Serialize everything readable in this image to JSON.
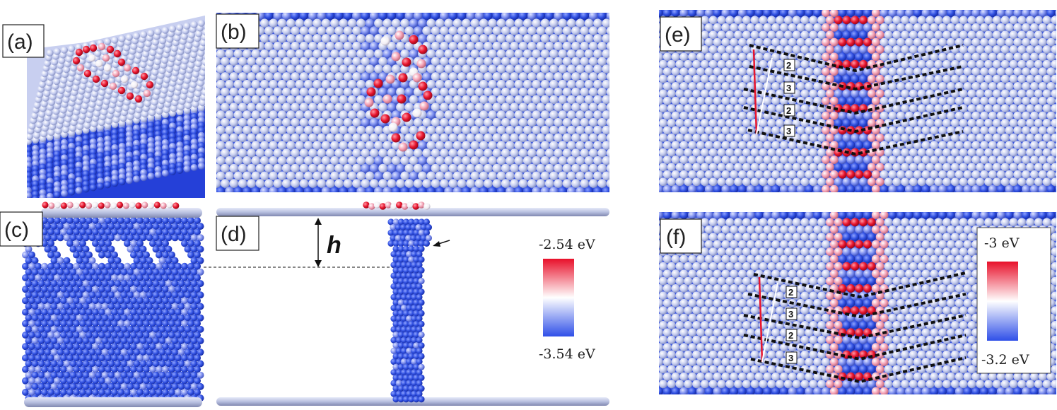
{
  "panels": [
    {
      "id": "a",
      "label": "(a)"
    },
    {
      "id": "b",
      "label": "(b)"
    },
    {
      "id": "c",
      "label": "(c)"
    },
    {
      "id": "d",
      "label": "(d)"
    },
    {
      "id": "e",
      "label": "(e)"
    },
    {
      "id": "f",
      "label": "(f)"
    }
  ],
  "colorbar_d": {
    "max_label": "-2.54 eV",
    "min_label": "-3.54 eV"
  },
  "colorbar_f": {
    "max_label": "-3 eV",
    "min_label": "-3.2 eV"
  },
  "height_marker": "h",
  "step_numbers_e": [
    "2",
    "3",
    "2",
    "3"
  ],
  "step_numbers_f": [
    "2",
    "3",
    "2",
    "3"
  ],
  "colors": {
    "atom_blue": "#2f4fe0",
    "atom_light": "#c6cdf0",
    "atom_red": "#e8142d",
    "atom_pink": "#f4a0b4"
  }
}
